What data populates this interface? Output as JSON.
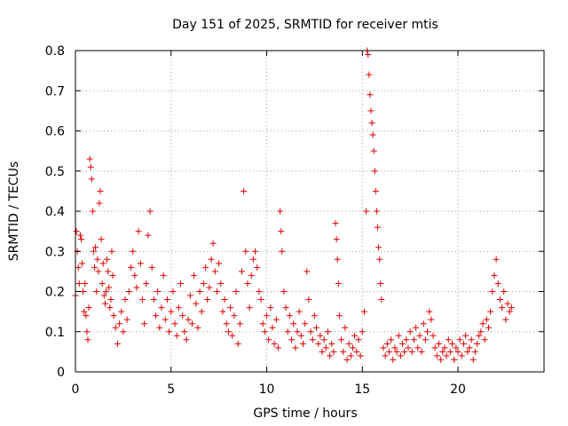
{
  "chart_data": {
    "type": "scatter",
    "title": "Day 151 of 2025, SRMTID for receiver mtis",
    "xlabel": "GPS time / hours",
    "ylabel": "SRMTID / TECUs",
    "xlim": [
      0,
      24.5
    ],
    "ylim": [
      0,
      0.8
    ],
    "xticks": [
      0,
      5,
      10,
      15,
      20
    ],
    "xtick_labels": [
      "0",
      "5",
      "10",
      "15",
      "20"
    ],
    "yticks": [
      0,
      0.1,
      0.2,
      0.3,
      0.4,
      0.5,
      0.6,
      0.7,
      0.8
    ],
    "ytick_labels": [
      "0",
      "0.1",
      "0.2",
      "0.3",
      "0.4",
      "0.5",
      "0.6",
      "0.7",
      "0.8"
    ],
    "grid": true,
    "marker": "plus",
    "color": "#e00000",
    "series": [
      {
        "name": "SRMTID",
        "points": [
          [
            0.0,
            0.19
          ],
          [
            0.05,
            0.35
          ],
          [
            0.1,
            0.3
          ],
          [
            0.15,
            0.26
          ],
          [
            0.2,
            0.22
          ],
          [
            0.25,
            0.34
          ],
          [
            0.3,
            0.33
          ],
          [
            0.35,
            0.27
          ],
          [
            0.4,
            0.2
          ],
          [
            0.45,
            0.15
          ],
          [
            0.5,
            0.22
          ],
          [
            0.55,
            0.14
          ],
          [
            0.6,
            0.1
          ],
          [
            0.65,
            0.08
          ],
          [
            0.7,
            0.16
          ],
          [
            0.75,
            0.53
          ],
          [
            0.8,
            0.51
          ],
          [
            0.85,
            0.48
          ],
          [
            0.9,
            0.4
          ],
          [
            0.95,
            0.3
          ],
          [
            1.0,
            0.26
          ],
          [
            1.05,
            0.31
          ],
          [
            1.1,
            0.2
          ],
          [
            1.15,
            0.28
          ],
          [
            1.2,
            0.25
          ],
          [
            1.25,
            0.42
          ],
          [
            1.3,
            0.45
          ],
          [
            1.35,
            0.33
          ],
          [
            1.4,
            0.22
          ],
          [
            1.45,
            0.27
          ],
          [
            1.5,
            0.19
          ],
          [
            1.55,
            0.17
          ],
          [
            1.6,
            0.2
          ],
          [
            1.65,
            0.28
          ],
          [
            1.7,
            0.25
          ],
          [
            1.75,
            0.21
          ],
          [
            1.8,
            0.16
          ],
          [
            1.85,
            0.18
          ],
          [
            1.9,
            0.3
          ],
          [
            1.95,
            0.24
          ],
          [
            2.0,
            0.14
          ],
          [
            2.1,
            0.11
          ],
          [
            2.2,
            0.07
          ],
          [
            2.3,
            0.12
          ],
          [
            2.4,
            0.15
          ],
          [
            2.5,
            0.1
          ],
          [
            2.6,
            0.18
          ],
          [
            2.7,
            0.13
          ],
          [
            2.8,
            0.2
          ],
          [
            2.9,
            0.26
          ],
          [
            3.0,
            0.3
          ],
          [
            3.1,
            0.24
          ],
          [
            3.2,
            0.21
          ],
          [
            3.3,
            0.35
          ],
          [
            3.4,
            0.27
          ],
          [
            3.5,
            0.18
          ],
          [
            3.6,
            0.12
          ],
          [
            3.7,
            0.22
          ],
          [
            3.8,
            0.34
          ],
          [
            3.9,
            0.4
          ],
          [
            4.0,
            0.26
          ],
          [
            4.1,
            0.18
          ],
          [
            4.2,
            0.14
          ],
          [
            4.3,
            0.2
          ],
          [
            4.4,
            0.11
          ],
          [
            4.5,
            0.16
          ],
          [
            4.6,
            0.24
          ],
          [
            4.7,
            0.13
          ],
          [
            4.8,
            0.18
          ],
          [
            4.9,
            0.1
          ],
          [
            5.0,
            0.15
          ],
          [
            5.1,
            0.2
          ],
          [
            5.2,
            0.12
          ],
          [
            5.3,
            0.09
          ],
          [
            5.4,
            0.16
          ],
          [
            5.5,
            0.22
          ],
          [
            5.6,
            0.14
          ],
          [
            5.7,
            0.1
          ],
          [
            5.8,
            0.08
          ],
          [
            5.9,
            0.13
          ],
          [
            6.0,
            0.19
          ],
          [
            6.1,
            0.12
          ],
          [
            6.2,
            0.24
          ],
          [
            6.3,
            0.17
          ],
          [
            6.4,
            0.11
          ],
          [
            6.5,
            0.2
          ],
          [
            6.6,
            0.15
          ],
          [
            6.7,
            0.22
          ],
          [
            6.8,
            0.26
          ],
          [
            6.9,
            0.18
          ],
          [
            7.0,
            0.21
          ],
          [
            7.1,
            0.28
          ],
          [
            7.2,
            0.32
          ],
          [
            7.3,
            0.25
          ],
          [
            7.4,
            0.2
          ],
          [
            7.5,
            0.27
          ],
          [
            7.6,
            0.22
          ],
          [
            7.7,
            0.15
          ],
          [
            7.8,
            0.18
          ],
          [
            7.9,
            0.12
          ],
          [
            8.0,
            0.1
          ],
          [
            8.1,
            0.16
          ],
          [
            8.2,
            0.09
          ],
          [
            8.3,
            0.14
          ],
          [
            8.4,
            0.2
          ],
          [
            8.5,
            0.07
          ],
          [
            8.6,
            0.12
          ],
          [
            8.7,
            0.25
          ],
          [
            8.8,
            0.45
          ],
          [
            8.9,
            0.3
          ],
          [
            9.0,
            0.22
          ],
          [
            9.1,
            0.16
          ],
          [
            9.2,
            0.24
          ],
          [
            9.3,
            0.28
          ],
          [
            9.4,
            0.3
          ],
          [
            9.5,
            0.26
          ],
          [
            9.6,
            0.2
          ],
          [
            9.7,
            0.18
          ],
          [
            9.8,
            0.12
          ],
          [
            9.9,
            0.1
          ],
          [
            10.0,
            0.14
          ],
          [
            10.1,
            0.08
          ],
          [
            10.2,
            0.16
          ],
          [
            10.3,
            0.11
          ],
          [
            10.4,
            0.07
          ],
          [
            10.5,
            0.13
          ],
          [
            10.6,
            0.06
          ],
          [
            10.7,
            0.4
          ],
          [
            10.75,
            0.35
          ],
          [
            10.8,
            0.3
          ],
          [
            10.9,
            0.2
          ],
          [
            11.0,
            0.16
          ],
          [
            11.1,
            0.1
          ],
          [
            11.2,
            0.14
          ],
          [
            11.3,
            0.08
          ],
          [
            11.4,
            0.12
          ],
          [
            11.5,
            0.06
          ],
          [
            11.6,
            0.1
          ],
          [
            11.7,
            0.15
          ],
          [
            11.8,
            0.09
          ],
          [
            11.9,
            0.07
          ],
          [
            12.0,
            0.12
          ],
          [
            12.1,
            0.25
          ],
          [
            12.2,
            0.18
          ],
          [
            12.3,
            0.1
          ],
          [
            12.4,
            0.08
          ],
          [
            12.5,
            0.14
          ],
          [
            12.6,
            0.11
          ],
          [
            12.7,
            0.07
          ],
          [
            12.8,
            0.09
          ],
          [
            12.9,
            0.05
          ],
          [
            13.0,
            0.08
          ],
          [
            13.1,
            0.06
          ],
          [
            13.2,
            0.1
          ],
          [
            13.3,
            0.04
          ],
          [
            13.4,
            0.07
          ],
          [
            13.5,
            0.05
          ],
          [
            13.6,
            0.37
          ],
          [
            13.65,
            0.33
          ],
          [
            13.7,
            0.28
          ],
          [
            13.75,
            0.22
          ],
          [
            13.8,
            0.14
          ],
          [
            13.9,
            0.08
          ],
          [
            14.0,
            0.05
          ],
          [
            14.1,
            0.11
          ],
          [
            14.2,
            0.03
          ],
          [
            14.3,
            0.07
          ],
          [
            14.4,
            0.04
          ],
          [
            14.5,
            0.06
          ],
          [
            14.6,
            0.09
          ],
          [
            14.7,
            0.05
          ],
          [
            14.8,
            0.08
          ],
          [
            14.9,
            0.04
          ],
          [
            15.0,
            0.1
          ],
          [
            15.1,
            0.15
          ],
          [
            15.2,
            0.4
          ],
          [
            15.25,
            0.8
          ],
          [
            15.3,
            0.79
          ],
          [
            15.35,
            0.74
          ],
          [
            15.4,
            0.69
          ],
          [
            15.45,
            0.65
          ],
          [
            15.5,
            0.62
          ],
          [
            15.55,
            0.59
          ],
          [
            15.6,
            0.55
          ],
          [
            15.65,
            0.5
          ],
          [
            15.7,
            0.45
          ],
          [
            15.75,
            0.4
          ],
          [
            15.8,
            0.36
          ],
          [
            15.85,
            0.31
          ],
          [
            15.9,
            0.28
          ],
          [
            15.95,
            0.22
          ],
          [
            16.0,
            0.18
          ],
          [
            16.1,
            0.06
          ],
          [
            16.2,
            0.04
          ],
          [
            16.3,
            0.07
          ],
          [
            16.4,
            0.05
          ],
          [
            16.5,
            0.08
          ],
          [
            16.6,
            0.03
          ],
          [
            16.7,
            0.06
          ],
          [
            16.8,
            0.05
          ],
          [
            16.9,
            0.09
          ],
          [
            17.0,
            0.04
          ],
          [
            17.1,
            0.07
          ],
          [
            17.2,
            0.05
          ],
          [
            17.3,
            0.08
          ],
          [
            17.4,
            0.06
          ],
          [
            17.5,
            0.1
          ],
          [
            17.6,
            0.05
          ],
          [
            17.7,
            0.08
          ],
          [
            17.8,
            0.11
          ],
          [
            17.9,
            0.06
          ],
          [
            18.0,
            0.09
          ],
          [
            18.1,
            0.05
          ],
          [
            18.2,
            0.12
          ],
          [
            18.3,
            0.08
          ],
          [
            18.4,
            0.1
          ],
          [
            18.5,
            0.15
          ],
          [
            18.6,
            0.13
          ],
          [
            18.7,
            0.09
          ],
          [
            18.8,
            0.06
          ],
          [
            18.9,
            0.04
          ],
          [
            19.0,
            0.07
          ],
          [
            19.1,
            0.03
          ],
          [
            19.2,
            0.05
          ],
          [
            19.3,
            0.06
          ],
          [
            19.4,
            0.04
          ],
          [
            19.5,
            0.08
          ],
          [
            19.6,
            0.05
          ],
          [
            19.7,
            0.07
          ],
          [
            19.8,
            0.03
          ],
          [
            19.9,
            0.06
          ],
          [
            20.0,
            0.05
          ],
          [
            20.1,
            0.08
          ],
          [
            20.2,
            0.04
          ],
          [
            20.3,
            0.07
          ],
          [
            20.4,
            0.09
          ],
          [
            20.5,
            0.05
          ],
          [
            20.6,
            0.06
          ],
          [
            20.7,
            0.08
          ],
          [
            20.8,
            0.03
          ],
          [
            20.9,
            0.05
          ],
          [
            21.0,
            0.07
          ],
          [
            21.1,
            0.09
          ],
          [
            21.2,
            0.1
          ],
          [
            21.3,
            0.12
          ],
          [
            21.4,
            0.08
          ],
          [
            21.5,
            0.13
          ],
          [
            21.6,
            0.11
          ],
          [
            21.7,
            0.15
          ],
          [
            21.8,
            0.2
          ],
          [
            21.9,
            0.24
          ],
          [
            22.0,
            0.28
          ],
          [
            22.1,
            0.22
          ],
          [
            22.2,
            0.18
          ],
          [
            22.3,
            0.16
          ],
          [
            22.4,
            0.2
          ],
          [
            22.5,
            0.13
          ],
          [
            22.6,
            0.17
          ],
          [
            22.7,
            0.15
          ],
          [
            22.8,
            0.16
          ]
        ]
      }
    ]
  }
}
